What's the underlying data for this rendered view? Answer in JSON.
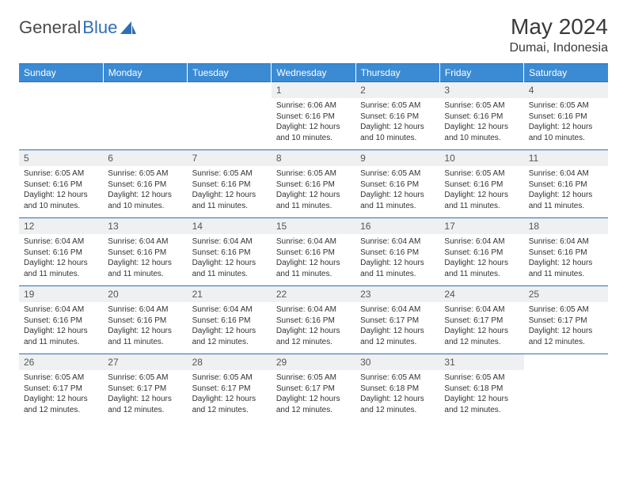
{
  "brand": {
    "part1": "General",
    "part2": "Blue"
  },
  "title": "May 2024",
  "location": "Dumai, Indonesia",
  "colors": {
    "header_bg": "#3b8bd4",
    "border": "#2e6fb4",
    "daynum_bg": "#eef0f2",
    "text": "#333333",
    "logo_blue": "#2e6fb4"
  },
  "weekdays": [
    "Sunday",
    "Monday",
    "Tuesday",
    "Wednesday",
    "Thursday",
    "Friday",
    "Saturday"
  ],
  "weeks": [
    [
      {
        "day": "",
        "lines": [
          "",
          "",
          "",
          ""
        ]
      },
      {
        "day": "",
        "lines": [
          "",
          "",
          "",
          ""
        ]
      },
      {
        "day": "",
        "lines": [
          "",
          "",
          "",
          ""
        ]
      },
      {
        "day": "1",
        "lines": [
          "Sunrise: 6:06 AM",
          "Sunset: 6:16 PM",
          "Daylight: 12 hours",
          "and 10 minutes."
        ]
      },
      {
        "day": "2",
        "lines": [
          "Sunrise: 6:05 AM",
          "Sunset: 6:16 PM",
          "Daylight: 12 hours",
          "and 10 minutes."
        ]
      },
      {
        "day": "3",
        "lines": [
          "Sunrise: 6:05 AM",
          "Sunset: 6:16 PM",
          "Daylight: 12 hours",
          "and 10 minutes."
        ]
      },
      {
        "day": "4",
        "lines": [
          "Sunrise: 6:05 AM",
          "Sunset: 6:16 PM",
          "Daylight: 12 hours",
          "and 10 minutes."
        ]
      }
    ],
    [
      {
        "day": "5",
        "lines": [
          "Sunrise: 6:05 AM",
          "Sunset: 6:16 PM",
          "Daylight: 12 hours",
          "and 10 minutes."
        ]
      },
      {
        "day": "6",
        "lines": [
          "Sunrise: 6:05 AM",
          "Sunset: 6:16 PM",
          "Daylight: 12 hours",
          "and 10 minutes."
        ]
      },
      {
        "day": "7",
        "lines": [
          "Sunrise: 6:05 AM",
          "Sunset: 6:16 PM",
          "Daylight: 12 hours",
          "and 11 minutes."
        ]
      },
      {
        "day": "8",
        "lines": [
          "Sunrise: 6:05 AM",
          "Sunset: 6:16 PM",
          "Daylight: 12 hours",
          "and 11 minutes."
        ]
      },
      {
        "day": "9",
        "lines": [
          "Sunrise: 6:05 AM",
          "Sunset: 6:16 PM",
          "Daylight: 12 hours",
          "and 11 minutes."
        ]
      },
      {
        "day": "10",
        "lines": [
          "Sunrise: 6:05 AM",
          "Sunset: 6:16 PM",
          "Daylight: 12 hours",
          "and 11 minutes."
        ]
      },
      {
        "day": "11",
        "lines": [
          "Sunrise: 6:04 AM",
          "Sunset: 6:16 PM",
          "Daylight: 12 hours",
          "and 11 minutes."
        ]
      }
    ],
    [
      {
        "day": "12",
        "lines": [
          "Sunrise: 6:04 AM",
          "Sunset: 6:16 PM",
          "Daylight: 12 hours",
          "and 11 minutes."
        ]
      },
      {
        "day": "13",
        "lines": [
          "Sunrise: 6:04 AM",
          "Sunset: 6:16 PM",
          "Daylight: 12 hours",
          "and 11 minutes."
        ]
      },
      {
        "day": "14",
        "lines": [
          "Sunrise: 6:04 AM",
          "Sunset: 6:16 PM",
          "Daylight: 12 hours",
          "and 11 minutes."
        ]
      },
      {
        "day": "15",
        "lines": [
          "Sunrise: 6:04 AM",
          "Sunset: 6:16 PM",
          "Daylight: 12 hours",
          "and 11 minutes."
        ]
      },
      {
        "day": "16",
        "lines": [
          "Sunrise: 6:04 AM",
          "Sunset: 6:16 PM",
          "Daylight: 12 hours",
          "and 11 minutes."
        ]
      },
      {
        "day": "17",
        "lines": [
          "Sunrise: 6:04 AM",
          "Sunset: 6:16 PM",
          "Daylight: 12 hours",
          "and 11 minutes."
        ]
      },
      {
        "day": "18",
        "lines": [
          "Sunrise: 6:04 AM",
          "Sunset: 6:16 PM",
          "Daylight: 12 hours",
          "and 11 minutes."
        ]
      }
    ],
    [
      {
        "day": "19",
        "lines": [
          "Sunrise: 6:04 AM",
          "Sunset: 6:16 PM",
          "Daylight: 12 hours",
          "and 11 minutes."
        ]
      },
      {
        "day": "20",
        "lines": [
          "Sunrise: 6:04 AM",
          "Sunset: 6:16 PM",
          "Daylight: 12 hours",
          "and 11 minutes."
        ]
      },
      {
        "day": "21",
        "lines": [
          "Sunrise: 6:04 AM",
          "Sunset: 6:16 PM",
          "Daylight: 12 hours",
          "and 12 minutes."
        ]
      },
      {
        "day": "22",
        "lines": [
          "Sunrise: 6:04 AM",
          "Sunset: 6:16 PM",
          "Daylight: 12 hours",
          "and 12 minutes."
        ]
      },
      {
        "day": "23",
        "lines": [
          "Sunrise: 6:04 AM",
          "Sunset: 6:17 PM",
          "Daylight: 12 hours",
          "and 12 minutes."
        ]
      },
      {
        "day": "24",
        "lines": [
          "Sunrise: 6:04 AM",
          "Sunset: 6:17 PM",
          "Daylight: 12 hours",
          "and 12 minutes."
        ]
      },
      {
        "day": "25",
        "lines": [
          "Sunrise: 6:05 AM",
          "Sunset: 6:17 PM",
          "Daylight: 12 hours",
          "and 12 minutes."
        ]
      }
    ],
    [
      {
        "day": "26",
        "lines": [
          "Sunrise: 6:05 AM",
          "Sunset: 6:17 PM",
          "Daylight: 12 hours",
          "and 12 minutes."
        ]
      },
      {
        "day": "27",
        "lines": [
          "Sunrise: 6:05 AM",
          "Sunset: 6:17 PM",
          "Daylight: 12 hours",
          "and 12 minutes."
        ]
      },
      {
        "day": "28",
        "lines": [
          "Sunrise: 6:05 AM",
          "Sunset: 6:17 PM",
          "Daylight: 12 hours",
          "and 12 minutes."
        ]
      },
      {
        "day": "29",
        "lines": [
          "Sunrise: 6:05 AM",
          "Sunset: 6:17 PM",
          "Daylight: 12 hours",
          "and 12 minutes."
        ]
      },
      {
        "day": "30",
        "lines": [
          "Sunrise: 6:05 AM",
          "Sunset: 6:18 PM",
          "Daylight: 12 hours",
          "and 12 minutes."
        ]
      },
      {
        "day": "31",
        "lines": [
          "Sunrise: 6:05 AM",
          "Sunset: 6:18 PM",
          "Daylight: 12 hours",
          "and 12 minutes."
        ]
      },
      {
        "day": "",
        "lines": [
          "",
          "",
          "",
          ""
        ]
      }
    ]
  ]
}
